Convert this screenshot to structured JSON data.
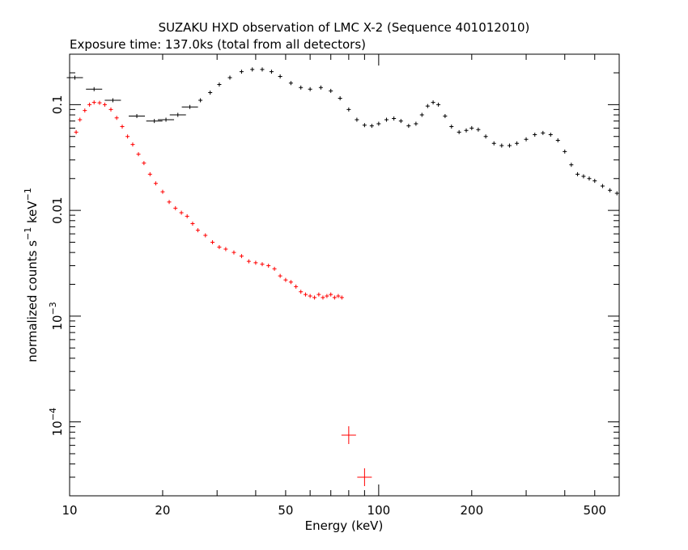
{
  "chart_data": {
    "type": "scatter",
    "title": "SUZAKU HXD observation of LMC X-2 (Sequence 401012010)",
    "subtitle": "Exposure time: 137.0ks (total from all detectors)",
    "xlabel": "Energy (keV)",
    "ylabel": {
      "main": "normalized counts s",
      "sup1": "−1",
      "mid": " keV",
      "sup2": "−1"
    },
    "x_scale": "log",
    "y_scale": "log",
    "xlim": [
      10,
      600
    ],
    "ylim": [
      2e-05,
      0.3
    ],
    "x_ticks": [
      {
        "value": 10,
        "label": "10"
      },
      {
        "value": 20,
        "label": "20"
      },
      {
        "value": 50,
        "label": "50"
      },
      {
        "value": 100,
        "label": "100"
      },
      {
        "value": 200,
        "label": "200"
      },
      {
        "value": 500,
        "label": "500"
      }
    ],
    "y_ticks": [
      {
        "value": 0.1,
        "label": "0.1"
      },
      {
        "value": 0.01,
        "label": "0.01"
      },
      {
        "value": 0.001,
        "base": "10",
        "exp": "−3"
      },
      {
        "value": 0.0001,
        "base": "10",
        "exp": "−4"
      }
    ],
    "grid": false,
    "series": [
      {
        "color": "#000000",
        "points": [
          [
            10.4,
            0.18
          ],
          [
            12.0,
            0.14
          ],
          [
            13.8,
            0.11
          ],
          [
            16.5,
            0.078
          ],
          [
            18.8,
            0.07
          ],
          [
            20.5,
            0.072
          ],
          [
            22.4,
            0.08
          ],
          [
            24.5,
            0.095
          ],
          [
            26.5,
            0.11
          ],
          [
            28.5,
            0.13
          ],
          [
            30.5,
            0.155
          ],
          [
            33.0,
            0.18
          ],
          [
            36.0,
            0.205
          ],
          [
            39.0,
            0.215
          ],
          [
            42.0,
            0.215
          ],
          [
            45.0,
            0.205
          ],
          [
            48.0,
            0.185
          ],
          [
            52.0,
            0.16
          ],
          [
            56.0,
            0.145
          ],
          [
            60.0,
            0.14
          ],
          [
            65.0,
            0.145
          ],
          [
            70.0,
            0.135
          ],
          [
            75.0,
            0.115
          ],
          [
            80.0,
            0.09
          ],
          [
            85.0,
            0.072
          ],
          [
            90.0,
            0.064
          ],
          [
            95.0,
            0.063
          ],
          [
            100.0,
            0.066
          ],
          [
            106.0,
            0.072
          ],
          [
            112.0,
            0.074
          ],
          [
            118.0,
            0.07
          ],
          [
            125.0,
            0.063
          ],
          [
            132.0,
            0.066
          ],
          [
            138.0,
            0.08
          ],
          [
            144.0,
            0.097
          ],
          [
            150.0,
            0.105
          ],
          [
            156.0,
            0.1
          ],
          [
            164.0,
            0.078
          ],
          [
            172.0,
            0.062
          ],
          [
            182.0,
            0.055
          ],
          [
            192.0,
            0.057
          ],
          [
            200.0,
            0.06
          ],
          [
            210.0,
            0.058
          ],
          [
            222.0,
            0.05
          ],
          [
            236.0,
            0.043
          ],
          [
            250.0,
            0.041
          ],
          [
            265.0,
            0.041
          ],
          [
            280.0,
            0.043
          ],
          [
            300.0,
            0.047
          ],
          [
            320.0,
            0.052
          ],
          [
            340.0,
            0.054
          ],
          [
            360.0,
            0.052
          ],
          [
            380.0,
            0.046
          ],
          [
            400.0,
            0.036
          ],
          [
            420.0,
            0.027
          ],
          [
            440.0,
            0.022
          ],
          [
            460.0,
            0.021
          ],
          [
            480.0,
            0.02
          ],
          [
            500.0,
            0.019
          ],
          [
            530.0,
            0.017
          ],
          [
            560.0,
            0.0155
          ],
          [
            590.0,
            0.0145
          ]
        ]
      },
      {
        "color": "#ff0000",
        "points": [
          [
            10.5,
            0.055
          ],
          [
            10.8,
            0.072
          ],
          [
            11.2,
            0.088
          ],
          [
            11.6,
            0.1
          ],
          [
            12.0,
            0.105
          ],
          [
            12.5,
            0.104
          ],
          [
            13.0,
            0.1
          ],
          [
            13.6,
            0.09
          ],
          [
            14.2,
            0.075
          ],
          [
            14.8,
            0.062
          ],
          [
            15.4,
            0.05
          ],
          [
            16.0,
            0.042
          ],
          [
            16.7,
            0.034
          ],
          [
            17.4,
            0.028
          ],
          [
            18.2,
            0.022
          ],
          [
            19.0,
            0.018
          ],
          [
            20.0,
            0.015
          ],
          [
            21.0,
            0.012
          ],
          [
            22.0,
            0.0105
          ],
          [
            23.0,
            0.0095
          ],
          [
            24.0,
            0.0088
          ],
          [
            25.0,
            0.0075
          ],
          [
            26.0,
            0.0065
          ],
          [
            27.5,
            0.0058
          ],
          [
            29.0,
            0.005
          ],
          [
            30.5,
            0.0045
          ],
          [
            32.0,
            0.0043
          ],
          [
            34.0,
            0.004
          ],
          [
            36.0,
            0.0037
          ],
          [
            38.0,
            0.0033
          ],
          [
            40.0,
            0.0032
          ],
          [
            42.0,
            0.0031
          ],
          [
            44.0,
            0.003
          ],
          [
            46.0,
            0.0028
          ],
          [
            48.0,
            0.0024
          ],
          [
            50.0,
            0.0022
          ],
          [
            52.0,
            0.0021
          ],
          [
            54.0,
            0.0019
          ],
          [
            56.0,
            0.0017
          ],
          [
            58.0,
            0.0016
          ],
          [
            60.0,
            0.00155
          ],
          [
            62.0,
            0.0015
          ],
          [
            64.0,
            0.0016
          ],
          [
            66.0,
            0.0015
          ],
          [
            68.0,
            0.00155
          ],
          [
            70.0,
            0.0016
          ],
          [
            72.0,
            0.0015
          ],
          [
            74.0,
            0.00155
          ],
          [
            76.0,
            0.0015
          ],
          [
            80.0,
            7.5e-05
          ],
          [
            90.0,
            3e-05
          ]
        ]
      }
    ]
  }
}
